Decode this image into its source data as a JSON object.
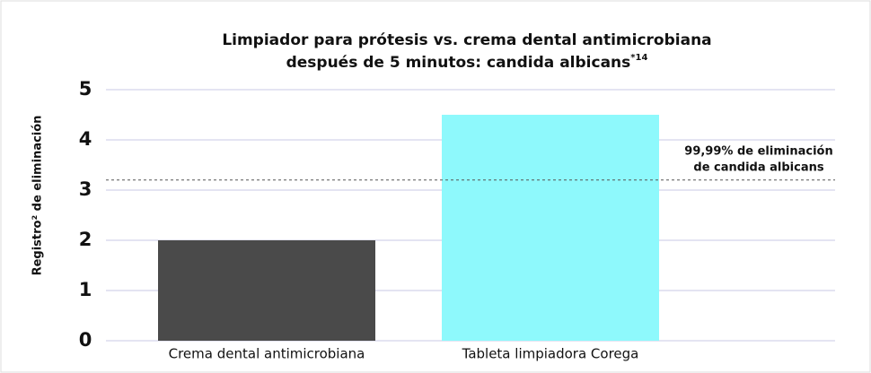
{
  "chart_data": {
    "type": "bar",
    "title": [
      "Limpiador para prótesis vs. crema dental antimicrobiana",
      "después de 5 minutos: candida albicans"
    ],
    "title_superscript": "*14",
    "y_label": "Registro² de eliminación",
    "categories": [
      "Crema dental antimicrobiana",
      "Tableta limpiadora Corega"
    ],
    "values": [
      2,
      4.5
    ],
    "colors": [
      "#4a4a4a",
      "#8ef9fc"
    ],
    "ylim": [
      0,
      5
    ],
    "yticks": [
      0,
      1,
      2,
      3,
      4,
      5
    ],
    "grid": true,
    "reference_line": {
      "value": 3.2,
      "label": [
        "99,99% de eliminación",
        "de candida albicans"
      ]
    }
  }
}
